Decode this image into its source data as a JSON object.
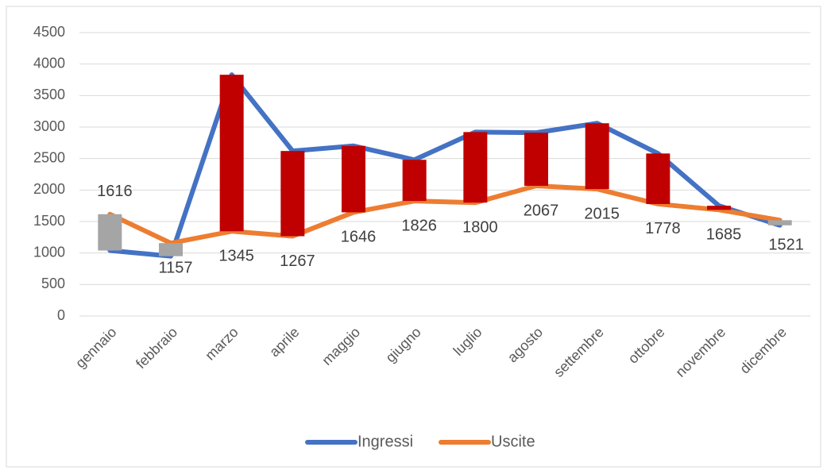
{
  "chart_data": {
    "type": "line",
    "categories": [
      "gennaio",
      "febbraio",
      "marzo",
      "aprile",
      "maggio",
      "giugno",
      "luglio",
      "agosto",
      "settembre",
      "ottobre",
      "novembre",
      "dicembre"
    ],
    "series": [
      {
        "name": "Ingressi",
        "color": "#4472c4",
        "values": [
          1040,
          950,
          3830,
          2620,
          2700,
          2480,
          2920,
          2910,
          3060,
          2580,
          1750,
          1440
        ]
      },
      {
        "name": "Uscite",
        "color": "#ed7d31",
        "values": [
          1616,
          1157,
          1345,
          1267,
          1646,
          1826,
          1800,
          2067,
          2015,
          1778,
          1685,
          1521
        ]
      }
    ],
    "up_bar_color": "#c00000",
    "down_bar_color": "#a5a5a5",
    "ylim": [
      0,
      4500
    ],
    "yticks": [
      0,
      500,
      1000,
      1500,
      2000,
      2500,
      3000,
      3500,
      4000,
      4500
    ],
    "grid": true,
    "legend": "bottom"
  }
}
